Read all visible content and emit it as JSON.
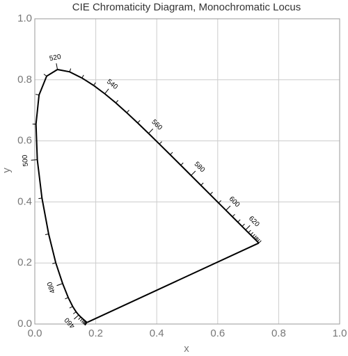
{
  "chart_data": {
    "type": "line",
    "title": "CIE Chromaticity Diagram, Monochromatic Locus",
    "x_label": "x",
    "y_label": "y",
    "xlim": [
      0,
      1
    ],
    "ylim": [
      0,
      1
    ],
    "xticks": [
      {
        "value": 0,
        "label": "0.0"
      },
      {
        "value": 0.2,
        "label": "0.2"
      },
      {
        "value": 0.4,
        "label": "0.4"
      },
      {
        "value": 0.6,
        "label": "0.6"
      },
      {
        "value": 0.8,
        "label": "0.8"
      },
      {
        "value": 1,
        "label": "1.0"
      }
    ],
    "yticks": [
      {
        "value": 0,
        "label": "0.0"
      },
      {
        "value": 0.2,
        "label": "0.2"
      },
      {
        "value": 0.4,
        "label": "0.4"
      },
      {
        "value": 0.6,
        "label": "0.6"
      },
      {
        "value": 0.8,
        "label": "0.8"
      },
      {
        "value": 1,
        "label": "1.0"
      }
    ],
    "grid": true,
    "closed": true,
    "series": [
      {
        "color": "#000000",
        "x": [
          0.1714,
          0.1703,
          0.1689,
          0.1669,
          0.1644,
          0.1611,
          0.1566,
          0.151,
          0.144,
          0.1355,
          0.1241,
          0.1096,
          0.0913,
          0.0687,
          0.0454,
          0.0235,
          0.0082,
          0.0039,
          0.0139,
          0.0389,
          0.0743,
          0.1142,
          0.1547,
          0.1929,
          0.2296,
          0.2658,
          0.3016,
          0.3373,
          0.3731,
          0.4087,
          0.4441,
          0.4788,
          0.5125,
          0.5448,
          0.5752,
          0.6029,
          0.627,
          0.6482,
          0.6658,
          0.6801,
          0.6915,
          0.7006,
          0.7079,
          0.714,
          0.719,
          0.723,
          0.726,
          0.73,
          0.7347
        ],
        "y": [
          0.0051,
          0.0058,
          0.0069,
          0.0086,
          0.0109,
          0.0138,
          0.0177,
          0.0227,
          0.0297,
          0.0399,
          0.0578,
          0.0868,
          0.1327,
          0.2007,
          0.295,
          0.4127,
          0.5384,
          0.6548,
          0.7502,
          0.812,
          0.8338,
          0.8262,
          0.8059,
          0.7816,
          0.7543,
          0.7243,
          0.6923,
          0.6589,
          0.6245,
          0.5896,
          0.5547,
          0.5202,
          0.4866,
          0.4544,
          0.4242,
          0.3965,
          0.3725,
          0.3514,
          0.334,
          0.3197,
          0.3083,
          0.2993,
          0.292,
          0.2859,
          0.2809,
          0.277,
          0.274,
          0.27,
          0.2653
        ],
        "point_labels": [
          null,
          null,
          null,
          null,
          null,
          null,
          null,
          null,
          "460",
          null,
          null,
          null,
          "480",
          null,
          null,
          null,
          "500",
          null,
          null,
          null,
          "520",
          null,
          null,
          null,
          "540",
          null,
          null,
          null,
          "560",
          null,
          null,
          null,
          "580",
          null,
          null,
          null,
          "600",
          null,
          null,
          null,
          "620",
          null,
          null,
          null,
          null,
          null,
          null,
          null,
          null
        ]
      }
    ]
  }
}
